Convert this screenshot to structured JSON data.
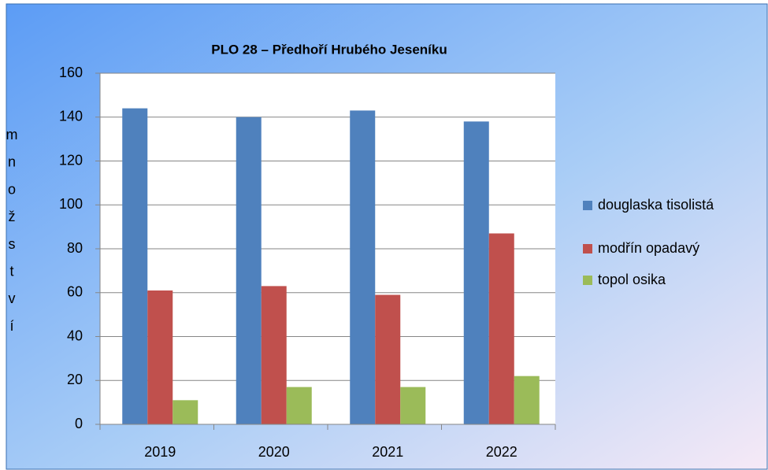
{
  "chart_data": {
    "type": "bar",
    "title": "PLO 28 – Předhoří Hrubého Jeseníku",
    "y_label": "množství",
    "categories": [
      "2019",
      "2020",
      "2021",
      "2022"
    ],
    "series": [
      {
        "name": "douglaska tisolistá",
        "color": "#4f81bd",
        "values": [
          144,
          140,
          143,
          138
        ]
      },
      {
        "name": "modřín opadavý",
        "color": "#c0504d",
        "values": [
          61,
          63,
          59,
          87
        ]
      },
      {
        "name": "topol osika",
        "color": "#9bbb59",
        "values": [
          11,
          17,
          17,
          22
        ]
      }
    ],
    "ylim": [
      0,
      160
    ],
    "yticks": [
      0,
      20,
      40,
      60,
      80,
      100,
      120,
      140,
      160
    ],
    "grid": true,
    "legend": "right"
  }
}
